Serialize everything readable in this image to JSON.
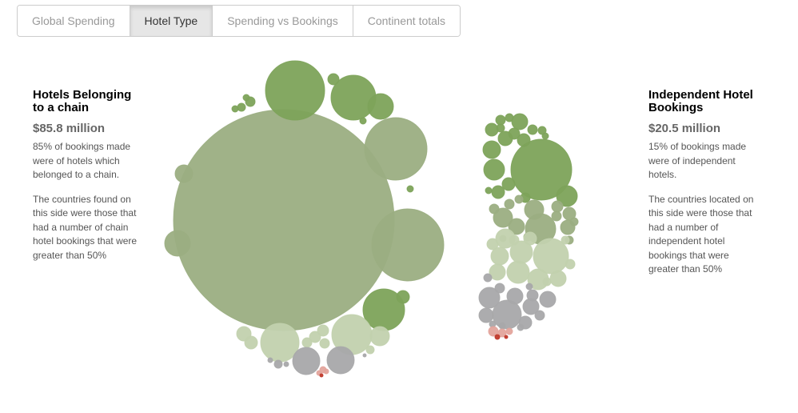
{
  "tabs": [
    {
      "label": "Global Spending",
      "active": false
    },
    {
      "label": "Hotel Type",
      "active": true
    },
    {
      "label": "Spending vs Bookings",
      "active": false
    },
    {
      "label": "Continent totals",
      "active": false
    }
  ],
  "left_panel": {
    "title": "Hotels Belonging to a chain",
    "amount": "$85.8 million",
    "text1": "85% of bookings made were of hotels which belonged to a chain.",
    "text2": "The countries found on this side were those that had a number of chain hotel bookings that were greater than 50%"
  },
  "right_panel": {
    "title": "Independent Hotel Bookings",
    "amount": "$20.5 million",
    "text1": "15% of bookings made were of independent hotels.",
    "text2": "The countries located on this side were those that had a number of independent hotel bookings that were greater than 50%"
  },
  "colors": {
    "dark_green": "#7da35a",
    "mid_green": "#9bae82",
    "light_green": "#c2d1ae",
    "grey": "#a8a8aa",
    "pink": "#e3a49c",
    "red": "#c0392b"
  }
}
